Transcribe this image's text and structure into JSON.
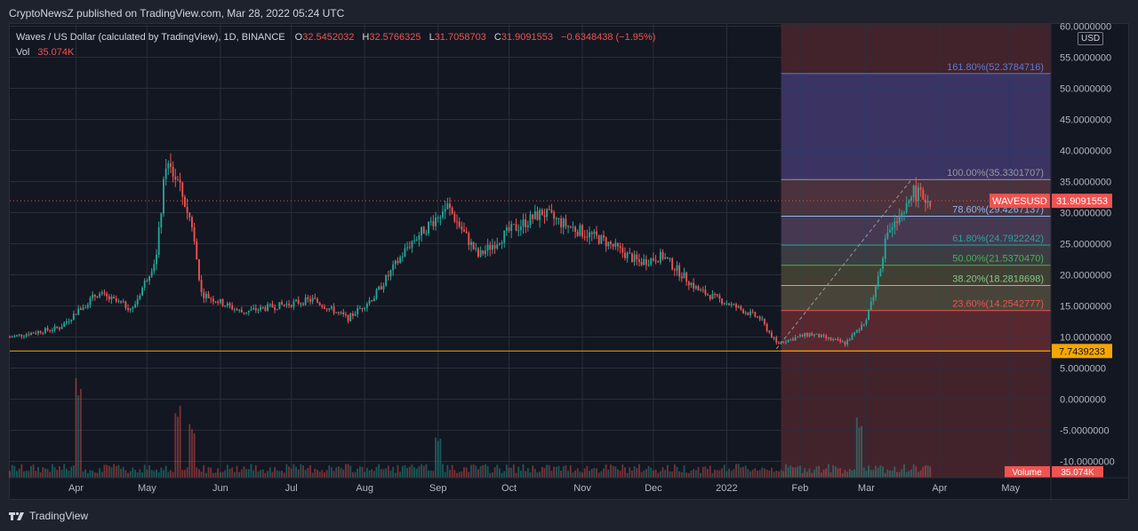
{
  "header": {
    "published": "CryptoNewsZ published on TradingView.com, Mar 28, 2022 05:24 UTC"
  },
  "legend": {
    "symbol": "Waves / US Dollar (calculated by TradingView), 1D, BINANCE",
    "o_label": "O",
    "o": "32.5452032",
    "h_label": "H",
    "h": "32.5766325",
    "l_label": "L",
    "l": "31.7058703",
    "c_label": "C",
    "c": "31.9091553",
    "change": "−0.6348438 (−1.95%)",
    "vol_label": "Vol",
    "vol": "35.074K"
  },
  "currency": "USD",
  "footer": {
    "brand": "TradingView"
  },
  "colors": {
    "up": "#26a69a",
    "down": "#ef5350",
    "support": "#f7a600",
    "background": "#131722"
  },
  "chart_data": {
    "type": "candlestick",
    "symbol": "WAVESUSD",
    "y_axis": {
      "min": -10,
      "max": 60,
      "ticks": [
        "-10.0000000",
        "-5.0000000",
        "0.0000000",
        "5.0000000",
        "10.0000000",
        "15.0000000",
        "20.0000000",
        "25.0000000",
        "30.0000000",
        "35.0000000",
        "40.0000000",
        "45.0000000",
        "50.0000000",
        "55.0000000",
        "60.0000000"
      ],
      "tick_values": [
        -10,
        -5,
        0,
        5,
        10,
        15,
        20,
        25,
        30,
        35,
        40,
        45,
        50,
        55,
        60
      ]
    },
    "x_axis": {
      "labels": [
        "Apr",
        "May",
        "Jun",
        "Jul",
        "Aug",
        "Sep",
        "Oct",
        "Nov",
        "Dec",
        "2022",
        "Feb",
        "Mar",
        "Apr",
        "May"
      ],
      "dates": [
        "2021-04-01",
        "2021-05-01",
        "2021-06-01",
        "2021-07-01",
        "2021-08-01",
        "2021-09-01",
        "2021-10-01",
        "2021-11-01",
        "2021-12-01",
        "2022-01-01",
        "2022-02-01",
        "2022-03-01",
        "2022-04-01",
        "2022-05-01"
      ],
      "start": "2021-03-04",
      "end": "2022-05-18"
    },
    "price_path": [
      {
        "date": "2021-03-04",
        "close": 10.0
      },
      {
        "date": "2021-03-25",
        "close": 11.5
      },
      {
        "date": "2021-04-10",
        "close": 17.0
      },
      {
        "date": "2021-04-25",
        "close": 14.5
      },
      {
        "date": "2021-05-05",
        "close": 23.0
      },
      {
        "date": "2021-05-09",
        "close": 38.0
      },
      {
        "date": "2021-05-14",
        "close": 35.0
      },
      {
        "date": "2021-05-20",
        "close": 28.0
      },
      {
        "date": "2021-05-24",
        "close": 17.0
      },
      {
        "date": "2021-06-10",
        "close": 14.0
      },
      {
        "date": "2021-06-25",
        "close": 15.0
      },
      {
        "date": "2021-07-10",
        "close": 16.0
      },
      {
        "date": "2021-07-25",
        "close": 13.0
      },
      {
        "date": "2021-08-05",
        "close": 16.5
      },
      {
        "date": "2021-08-20",
        "close": 25.0
      },
      {
        "date": "2021-09-05",
        "close": 31.0
      },
      {
        "date": "2021-09-18",
        "close": 23.0
      },
      {
        "date": "2021-10-01",
        "close": 27.0
      },
      {
        "date": "2021-10-15",
        "close": 30.0
      },
      {
        "date": "2021-10-25",
        "close": 28.0
      },
      {
        "date": "2021-11-10",
        "close": 25.5
      },
      {
        "date": "2021-11-25",
        "close": 22.0
      },
      {
        "date": "2021-12-05",
        "close": 23.0
      },
      {
        "date": "2021-12-20",
        "close": 17.5
      },
      {
        "date": "2022-01-01",
        "close": 15.5
      },
      {
        "date": "2022-01-15",
        "close": 13.0
      },
      {
        "date": "2022-01-22",
        "close": 9.0
      },
      {
        "date": "2022-02-05",
        "close": 10.5
      },
      {
        "date": "2022-02-20",
        "close": 9.0
      },
      {
        "date": "2022-02-28",
        "close": 12.0
      },
      {
        "date": "2022-03-05",
        "close": 18.0
      },
      {
        "date": "2022-03-10",
        "close": 27.0
      },
      {
        "date": "2022-03-17",
        "close": 29.5
      },
      {
        "date": "2022-03-20",
        "close": 33.5
      },
      {
        "date": "2022-03-28",
        "close": 31.9
      }
    ],
    "volume": {
      "label": "Volume",
      "last": "35.074K",
      "spikes": [
        {
          "date": "2021-04-02",
          "value": 1.0
        },
        {
          "date": "2021-05-14",
          "value": 0.65
        },
        {
          "date": "2021-05-20",
          "value": 0.55
        },
        {
          "date": "2021-09-01",
          "value": 0.45
        },
        {
          "date": "2022-02-26",
          "value": 0.6
        }
      ]
    },
    "support": {
      "value": 7.7439233,
      "label": "7.7439233"
    },
    "current_price": {
      "value": 31.9091553,
      "label": "31.9091553",
      "symbol_label": "WAVESUSD"
    },
    "fibonacci": {
      "start": "2022-01-24",
      "end": "2022-05-18",
      "levels": [
        {
          "ratio": "161.80%",
          "value": 52.3784716,
          "label": "161.80%(52.3784716)",
          "color": "#5b7bd6"
        },
        {
          "ratio": "100.00%",
          "value": 35.3301707,
          "label": "100.00%(35.3301707)",
          "color": "#9598a1"
        },
        {
          "ratio": "78.60%",
          "value": 29.4267137,
          "label": "78.60%(29.4267137)",
          "color": "#8fb4f0"
        },
        {
          "ratio": "61.80%",
          "value": 24.7922242,
          "label": "61.80%(24.7922242)",
          "color": "#26a69a"
        },
        {
          "ratio": "50.00%",
          "value": 21.537047,
          "label": "50.00%(21.5370470)",
          "color": "#4caf50"
        },
        {
          "ratio": "38.20%",
          "value": 18.2818698,
          "label": "38.20%(18.2818698)",
          "color": "#81c784"
        },
        {
          "ratio": "23.60%",
          "value": 14.2542777,
          "label": "23.60%(14.2542777)",
          "color": "#ef5350"
        },
        {
          "ratio": "0.00%",
          "value": 7.7439233,
          "label": "",
          "color": "#f7a600"
        }
      ]
    }
  }
}
